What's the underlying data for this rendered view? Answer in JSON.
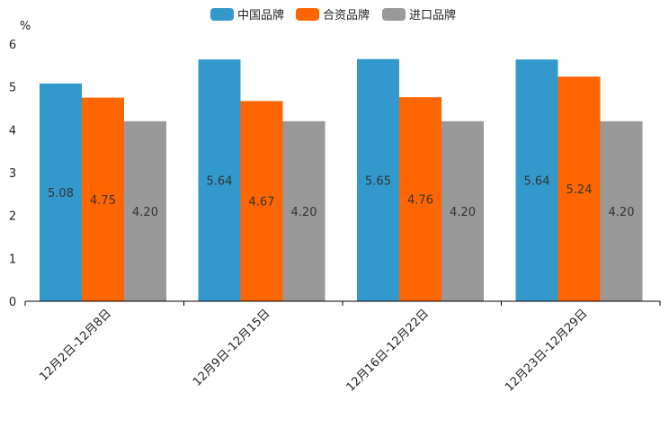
{
  "chart_data": {
    "type": "bar",
    "title": "",
    "ylabel": "%",
    "xlabel": "",
    "ylim": [
      0,
      6
    ],
    "yticks": [
      "0",
      "1",
      "2",
      "3",
      "4",
      "5",
      "6"
    ],
    "categories": [
      "12月2日-12月8日",
      "12月9日-12月15日",
      "12月16日-12月22日",
      "12月23日-12月29日"
    ],
    "legend_position": "top-center",
    "grid": false,
    "series": [
      {
        "name": "中国品牌",
        "color": "#3399cc",
        "values": [
          5.08,
          5.64,
          5.65,
          5.64
        ],
        "labels": [
          "5.08",
          "5.64",
          "5.65",
          "5.64"
        ]
      },
      {
        "name": "合资品牌",
        "color": "#ff6600",
        "values": [
          4.75,
          4.67,
          4.76,
          5.24
        ],
        "labels": [
          "4.75",
          "4.67",
          "4.76",
          "5.24"
        ]
      },
      {
        "name": "进口品牌",
        "color": "#999999",
        "values": [
          4.2,
          4.2,
          4.2,
          4.2
        ],
        "labels": [
          "4.20",
          "4.20",
          "4.20",
          "4.20"
        ]
      }
    ]
  }
}
